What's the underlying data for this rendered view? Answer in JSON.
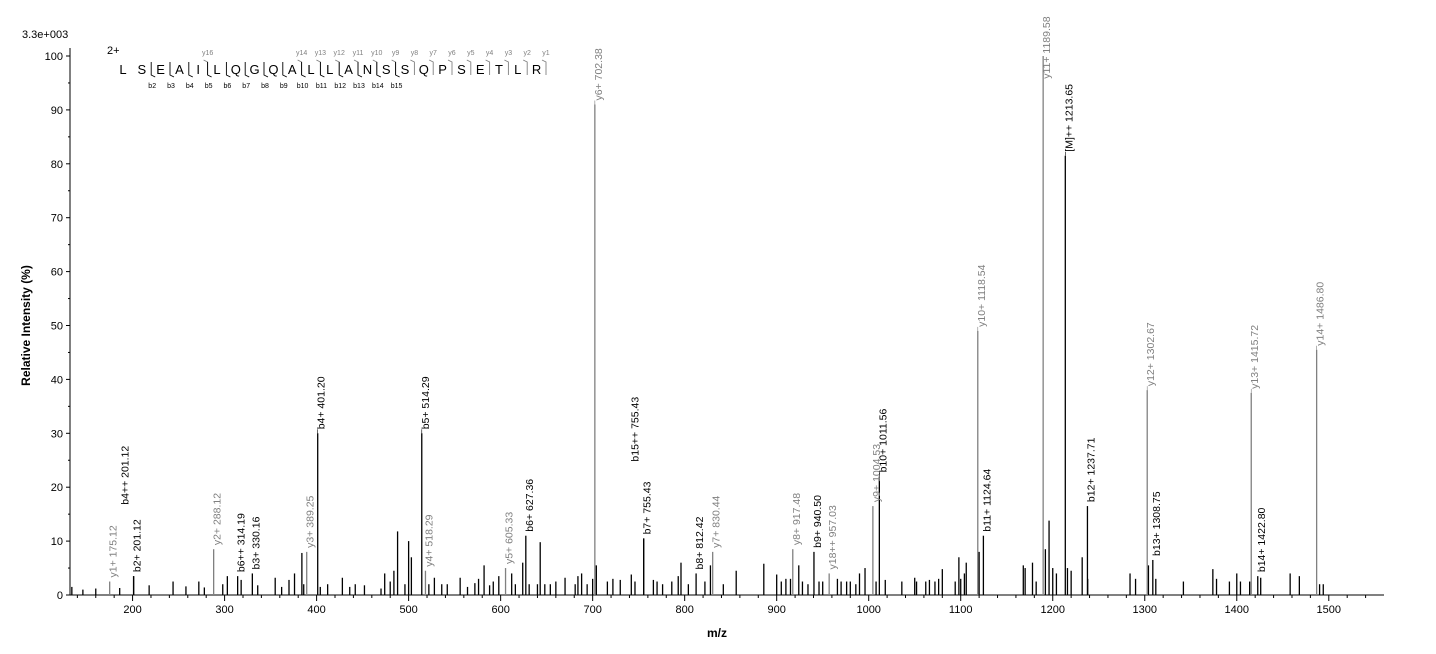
{
  "chart_data": {
    "type": "bar",
    "scale_label": "3.3e+003",
    "xlabel": "m/z",
    "ylabel": "Relative   Intensity (%)",
    "xlim": [
      132,
      1560
    ],
    "ylim": [
      0,
      100
    ],
    "x_ticks": [
      100,
      200,
      300,
      400,
      500,
      600,
      700,
      800,
      900,
      1000,
      1100,
      1200,
      1300,
      1400,
      1500
    ],
    "y_ticks": [
      0,
      10,
      20,
      30,
      40,
      50,
      60,
      70,
      80,
      90,
      100
    ],
    "colors": {
      "b": "#000000",
      "y": "#808080",
      "M": "#000000"
    },
    "peptide": {
      "charge": "2+",
      "sequence": [
        "L",
        "S",
        "E",
        "A",
        "I",
        "L",
        "Q",
        "G",
        "Q",
        "A",
        "L",
        "L",
        "A",
        "N",
        "S",
        "S",
        "Q",
        "P",
        "S",
        "E",
        "T",
        "L",
        "R"
      ],
      "y_labels": [
        "y16",
        "y14",
        "y13",
        "y12",
        "y11",
        "y10",
        "y9",
        "y8",
        "y7",
        "y6",
        "y5",
        "y4",
        "y3",
        "y2",
        "y1"
      ],
      "b_labels": [
        "b2",
        "b3",
        "b4",
        "b5",
        "b6",
        "b7",
        "b8",
        "b9",
        "b10",
        "b11",
        "b12",
        "b13",
        "b14",
        "b15"
      ]
    },
    "annotated_peaks": [
      {
        "x": 175.12,
        "y": 2.5,
        "label": "y1+ 175.12",
        "series": "y"
      },
      {
        "x": 201.12,
        "y": 3.5,
        "label": "b2+ 201.12",
        "series": "b"
      },
      {
        "x": 201.12,
        "y": 3.5,
        "label": "b4++ 201.12",
        "series": "b"
      },
      {
        "x": 288.12,
        "y": 8.5,
        "label": "y2+ 288.12",
        "series": "y"
      },
      {
        "x": 314.19,
        "y": 3.5,
        "label": "b6++ 314.19",
        "series": "b"
      },
      {
        "x": 330.16,
        "y": 4.0,
        "label": "b3+ 330.16",
        "series": "b"
      },
      {
        "x": 389.25,
        "y": 8.0,
        "label": "y3+ 389.25",
        "series": "y"
      },
      {
        "x": 401.2,
        "y": 30.0,
        "label": "b4+ 401.20",
        "series": "b"
      },
      {
        "x": 514.29,
        "y": 30.0,
        "label": "b5+ 514.29",
        "series": "b"
      },
      {
        "x": 518.29,
        "y": 4.5,
        "label": "y4+ 518.29",
        "series": "y"
      },
      {
        "x": 605.33,
        "y": 5.0,
        "label": "y5+ 605.33",
        "series": "y"
      },
      {
        "x": 627.36,
        "y": 11.0,
        "label": "b6+ 627.36",
        "series": "b"
      },
      {
        "x": 702.38,
        "y": 91.0,
        "label": "y6+ 702.38",
        "series": "y"
      },
      {
        "x": 755.43,
        "y": 10.5,
        "label": "b7+ 755.43",
        "series": "b"
      },
      {
        "x": 755.43,
        "y": 10.5,
        "label": "b15++ 755.43",
        "series": "b"
      },
      {
        "x": 812.42,
        "y": 4.0,
        "label": "b8+ 812.42",
        "series": "b"
      },
      {
        "x": 830.44,
        "y": 8.0,
        "label": "y7+ 830.44",
        "series": "y"
      },
      {
        "x": 917.48,
        "y": 8.5,
        "label": "y8+ 917.48",
        "series": "y"
      },
      {
        "x": 940.5,
        "y": 8.0,
        "label": "b9+ 940.50",
        "series": "b"
      },
      {
        "x": 957.03,
        "y": 4.0,
        "label": "y18++ 957.03",
        "series": "y"
      },
      {
        "x": 1004.53,
        "y": 16.5,
        "label": "y9+ 1004.53",
        "series": "y"
      },
      {
        "x": 1011.56,
        "y": 22.0,
        "label": "b10+ 1011.56",
        "series": "b"
      },
      {
        "x": 1118.54,
        "y": 49.0,
        "label": "y10+ 1118.54",
        "series": "y"
      },
      {
        "x": 1124.64,
        "y": 11.0,
        "label": "b11+ 1124.64",
        "series": "b"
      },
      {
        "x": 1189.58,
        "y": 100.0,
        "label": "y11+ 1189.58",
        "series": "y"
      },
      {
        "x": 1213.65,
        "y": 81.5,
        "label": "[M]++ 1213.65",
        "series": "M"
      },
      {
        "x": 1237.71,
        "y": 16.5,
        "label": "b12+ 1237.71",
        "series": "b"
      },
      {
        "x": 1302.67,
        "y": 38.0,
        "label": "y12+ 1302.67",
        "series": "y"
      },
      {
        "x": 1308.75,
        "y": 6.5,
        "label": "b13+ 1308.75",
        "series": "b"
      },
      {
        "x": 1415.72,
        "y": 37.5,
        "label": "y13+ 1415.72",
        "series": "y"
      },
      {
        "x": 1422.8,
        "y": 3.5,
        "label": "b14+ 1422.80",
        "series": "b"
      },
      {
        "x": 1486.8,
        "y": 45.5,
        "label": "y14+ 1486.80",
        "series": "y"
      }
    ],
    "noise_peaks": [
      [
        134,
        1.5
      ],
      [
        146,
        1.0
      ],
      [
        160,
        1.2
      ],
      [
        186,
        1.3
      ],
      [
        218,
        1.8
      ],
      [
        244,
        2.5
      ],
      [
        258,
        1.6
      ],
      [
        272,
        2.5
      ],
      [
        278,
        1.4
      ],
      [
        298,
        2.0
      ],
      [
        303,
        3.5
      ],
      [
        318,
        2.8
      ],
      [
        336,
        1.8
      ],
      [
        355,
        3.2
      ],
      [
        362,
        1.5
      ],
      [
        370,
        2.8
      ],
      [
        376,
        4.0
      ],
      [
        384,
        7.8
      ],
      [
        386,
        2.0
      ],
      [
        404,
        1.5
      ],
      [
        412,
        2.0
      ],
      [
        428,
        3.2
      ],
      [
        436,
        1.5
      ],
      [
        442,
        2.0
      ],
      [
        452,
        1.8
      ],
      [
        470,
        1.2
      ],
      [
        474,
        4.0
      ],
      [
        480,
        2.5
      ],
      [
        484,
        4.5
      ],
      [
        488,
        11.8
      ],
      [
        496,
        2.0
      ],
      [
        500,
        10.0
      ],
      [
        503,
        7.0
      ],
      [
        522,
        2.0
      ],
      [
        528,
        3.2
      ],
      [
        536,
        2.0
      ],
      [
        542,
        2.0
      ],
      [
        556,
        3.2
      ],
      [
        564,
        1.5
      ],
      [
        572,
        2.2
      ],
      [
        576,
        3.0
      ],
      [
        582,
        5.5
      ],
      [
        588,
        1.8
      ],
      [
        592,
        2.5
      ],
      [
        598,
        3.5
      ],
      [
        612,
        4.0
      ],
      [
        616,
        2.0
      ],
      [
        624,
        6.0
      ],
      [
        631,
        2.0
      ],
      [
        640,
        2.0
      ],
      [
        643,
        9.8
      ],
      [
        648,
        2.0
      ],
      [
        654,
        2.0
      ],
      [
        660,
        2.5
      ],
      [
        670,
        3.2
      ],
      [
        681,
        2.0
      ],
      [
        684,
        3.5
      ],
      [
        688,
        4.0
      ],
      [
        694,
        2.0
      ],
      [
        700,
        3.0
      ],
      [
        704,
        5.5
      ],
      [
        716,
        2.5
      ],
      [
        722,
        3.0
      ],
      [
        730,
        2.8
      ],
      [
        742,
        3.8
      ],
      [
        746,
        2.5
      ],
      [
        766,
        2.8
      ],
      [
        770,
        2.5
      ],
      [
        776,
        2.0
      ],
      [
        786,
        2.5
      ],
      [
        793,
        3.5
      ],
      [
        796,
        6.0
      ],
      [
        804,
        2.0
      ],
      [
        822,
        2.5
      ],
      [
        828,
        5.5
      ],
      [
        842,
        2.0
      ],
      [
        856,
        4.5
      ],
      [
        886,
        5.8
      ],
      [
        900,
        3.8
      ],
      [
        905,
        2.5
      ],
      [
        910,
        3.0
      ],
      [
        915,
        3.0
      ],
      [
        924,
        5.5
      ],
      [
        928,
        2.5
      ],
      [
        934,
        2.0
      ],
      [
        946,
        2.5
      ],
      [
        950,
        2.5
      ],
      [
        966,
        3.0
      ],
      [
        970,
        2.5
      ],
      [
        976,
        2.5
      ],
      [
        980,
        2.5
      ],
      [
        986,
        2.0
      ],
      [
        990,
        4.0
      ],
      [
        996,
        5.0
      ],
      [
        1008,
        2.5
      ],
      [
        1018,
        2.8
      ],
      [
        1036,
        2.5
      ],
      [
        1050,
        3.2
      ],
      [
        1052,
        2.5
      ],
      [
        1062,
        2.5
      ],
      [
        1066,
        2.8
      ],
      [
        1072,
        2.5
      ],
      [
        1076,
        3.0
      ],
      [
        1080,
        4.8
      ],
      [
        1094,
        2.5
      ],
      [
        1098,
        7.0
      ],
      [
        1100,
        3.0
      ],
      [
        1104,
        4.0
      ],
      [
        1106,
        6.0
      ],
      [
        1120,
        8.0
      ],
      [
        1168,
        5.5
      ],
      [
        1170,
        5.0
      ],
      [
        1178,
        6.0
      ],
      [
        1182,
        2.5
      ],
      [
        1192,
        8.5
      ],
      [
        1196,
        13.8
      ],
      [
        1200,
        5.0
      ],
      [
        1204,
        4.0
      ],
      [
        1216,
        5.0
      ],
      [
        1220,
        4.5
      ],
      [
        1232,
        7.0
      ],
      [
        1238,
        3.0
      ],
      [
        1284,
        4.0
      ],
      [
        1290,
        3.0
      ],
      [
        1304,
        5.5
      ],
      [
        1312,
        3.0
      ],
      [
        1342,
        2.5
      ],
      [
        1374,
        4.8
      ],
      [
        1378,
        3.0
      ],
      [
        1392,
        2.5
      ],
      [
        1400,
        4.0
      ],
      [
        1404,
        2.5
      ],
      [
        1414,
        2.5
      ],
      [
        1426,
        3.2
      ],
      [
        1458,
        4.0
      ],
      [
        1468,
        3.5
      ],
      [
        1490,
        2.0
      ],
      [
        1494,
        2.0
      ]
    ]
  }
}
